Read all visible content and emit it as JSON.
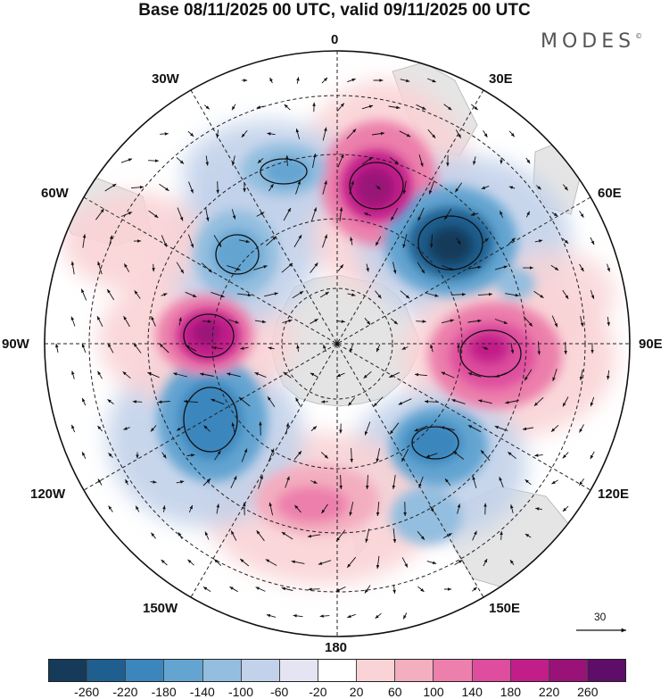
{
  "title": "Base 08/11/2025 00 UTC, valid 09/11/2025 00 UTC",
  "brand": "MODES",
  "brand_mark": "©",
  "longitude_labels": {
    "lon_0": "0",
    "lon_30e": "30E",
    "lon_60e": "60E",
    "lon_90e": "90E",
    "lon_120e": "120E",
    "lon_150e": "150E",
    "lon_180": "180",
    "lon_150w": "150W",
    "lon_120w": "120W",
    "lon_90w": "90W",
    "lon_60w": "60W",
    "lon_30w": "30W"
  },
  "vector_scale_label": "30",
  "colorbar": {
    "colors": [
      "#153a5a",
      "#1f5f8f",
      "#3b86bd",
      "#64a4d1",
      "#93bedf",
      "#c2d2ea",
      "#e4e4f2",
      "#ffffff",
      "#f9d3d5",
      "#f3aec0",
      "#ec7fab",
      "#de4d9e",
      "#c21e8a",
      "#981277",
      "#5e0d68"
    ],
    "ticks": [
      "-260",
      "-220",
      "-180",
      "-140",
      "-100",
      "-60",
      "-20",
      "20",
      "60",
      "100",
      "140",
      "180",
      "220",
      "260"
    ]
  },
  "anomaly_centers": [
    {
      "lon_deg": 10,
      "value": 250
    },
    {
      "lon_deg": 40,
      "value": -260
    },
    {
      "lon_deg": 85,
      "value": 200
    },
    {
      "lon_deg": 133,
      "value": -160
    },
    {
      "lon_deg": 148,
      "value": -120
    },
    {
      "lon_deg": 195,
      "value": 100
    },
    {
      "lon_deg": 232,
      "value": -180
    },
    {
      "lon_deg": 270,
      "value": 230
    },
    {
      "lon_deg": 320,
      "value": -170
    },
    {
      "lon_deg": 340,
      "value": -150
    },
    {
      "lon_deg": 295,
      "value": 60
    }
  ]
}
